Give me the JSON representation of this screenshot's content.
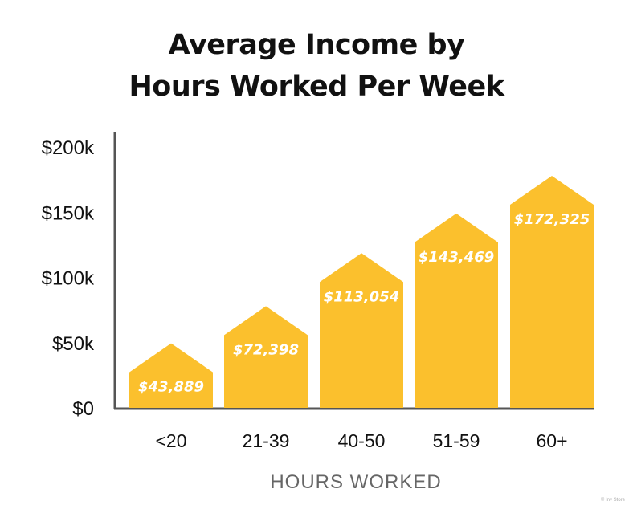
{
  "chart_data": {
    "type": "bar",
    "title": "Average Income by Hours Worked Per Week",
    "title_lines": [
      "Average Income by",
      "Hours Worked Per Week"
    ],
    "xlabel": "HOURS WORKED",
    "ylabel": "",
    "categories": [
      "<20",
      "21-39",
      "40-50",
      "51-59",
      "60+"
    ],
    "values": [
      43889,
      72398,
      113054,
      143469,
      172325
    ],
    "value_labels": [
      "$43,889",
      "$72,398",
      "$113,054",
      "$143,469",
      "$172,325"
    ],
    "yticks": [
      0,
      50000,
      100000,
      150000,
      200000
    ],
    "ytick_labels": [
      "$0",
      "$50k",
      "$100k",
      "$150k",
      "$200k"
    ],
    "ylim": [
      0,
      200000
    ],
    "grid": false,
    "legend": null,
    "bar_color": "#FBC02D",
    "bar_shape": "house-arrow"
  },
  "credit": "© Inv Store"
}
